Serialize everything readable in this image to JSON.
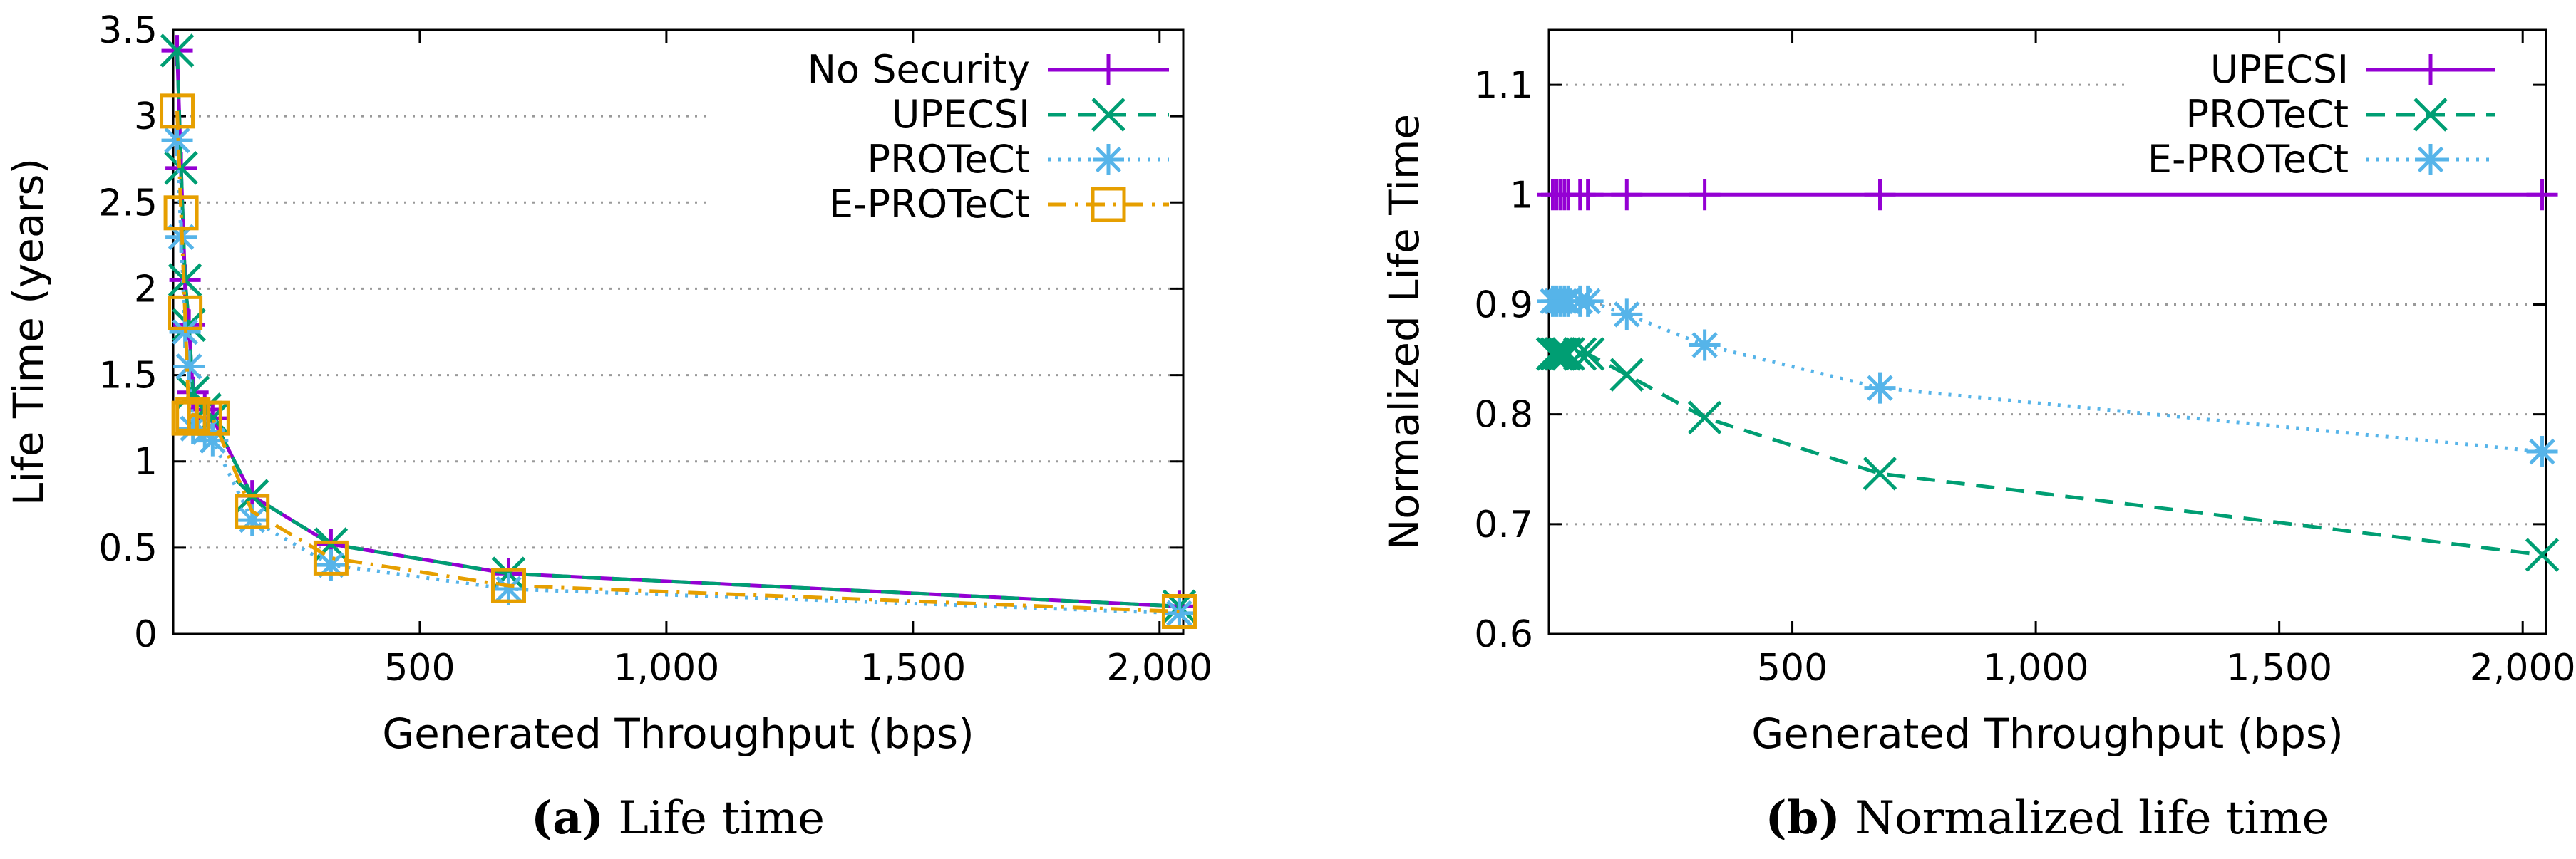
{
  "chart_data": [
    {
      "type": "line",
      "panel": "a",
      "caption_label": "(a)",
      "caption_text": "Life time",
      "xlabel": "Generated Throughput (bps)",
      "ylabel": "Life Time (years)",
      "xlim": [
        0,
        2048
      ],
      "ylim": [
        0,
        3.5
      ],
      "xticks": [
        500,
        1000,
        1500,
        2000
      ],
      "xtick_labels": [
        "500",
        "1,000",
        "1,500",
        "2,000"
      ],
      "yticks": [
        0,
        0.5,
        1,
        1.5,
        2,
        2.5,
        3,
        3.5
      ],
      "ytick_labels": [
        "0",
        "0.5",
        "1",
        "1.5",
        "2",
        "2.5",
        "3",
        "3.5"
      ],
      "grid": true,
      "legend_position": "top-right",
      "x": [
        8,
        16,
        24,
        32,
        40,
        64,
        80,
        160,
        320,
        680,
        2040
      ],
      "series": [
        {
          "name": "No Security",
          "color": "#9400d3",
          "marker": "plus",
          "dash": "solid",
          "values": [
            3.38,
            2.7,
            2.05,
            1.79,
            1.4,
            1.3,
            1.25,
            0.8,
            0.52,
            0.35,
            0.16
          ]
        },
        {
          "name": "UPECSI",
          "color": "#009e73",
          "marker": "x",
          "dash": "dashed",
          "values": [
            3.38,
            2.7,
            2.05,
            1.79,
            1.4,
            1.3,
            1.25,
            0.8,
            0.52,
            0.35,
            0.16
          ]
        },
        {
          "name": "PROTeCt",
          "color": "#56b4e9",
          "marker": "star",
          "dash": "dotted",
          "values": [
            2.86,
            2.3,
            1.75,
            1.55,
            1.19,
            1.17,
            1.12,
            0.66,
            0.4,
            0.26,
            0.12
          ]
        },
        {
          "name": "E-PROTeCt",
          "color": "#e69f00",
          "marker": "square",
          "dash": "dashdot",
          "values": [
            3.03,
            2.44,
            1.86,
            1.25,
            1.27,
            1.25,
            1.25,
            0.71,
            0.44,
            0.28,
            0.13
          ]
        }
      ]
    },
    {
      "type": "line",
      "panel": "b",
      "caption_label": "(b)",
      "caption_text": "Normalized life time",
      "xlabel": "Generated Throughput (bps)",
      "ylabel": "Normalized Life Time",
      "xlim": [
        0,
        2048
      ],
      "ylim": [
        0.6,
        1.15
      ],
      "xticks": [
        500,
        1000,
        1500,
        2000
      ],
      "xtick_labels": [
        "500",
        "1,000",
        "1,500",
        "2,000"
      ],
      "yticks": [
        0.6,
        0.7,
        0.8,
        0.9,
        1,
        1.1
      ],
      "ytick_labels": [
        "0.6",
        "0.7",
        "0.8",
        "0.9",
        "1",
        "1.1"
      ],
      "grid": true,
      "legend_position": "top-right",
      "x": [
        8,
        16,
        24,
        32,
        40,
        64,
        80,
        160,
        320,
        680,
        2040
      ],
      "series": [
        {
          "name": "UPECSI",
          "color": "#9400d3",
          "marker": "plus",
          "dash": "solid",
          "values": [
            1,
            1,
            1,
            1,
            1,
            1,
            1,
            1,
            1,
            1,
            1
          ]
        },
        {
          "name": "PROTeCt",
          "color": "#009e73",
          "marker": "x",
          "dash": "dashed",
          "values": [
            0.855,
            0.855,
            0.855,
            0.855,
            0.855,
            0.855,
            0.855,
            0.836,
            0.797,
            0.746,
            0.672
          ]
        },
        {
          "name": "E-PROTeCt",
          "color": "#56b4e9",
          "marker": "star",
          "dash": "dotted",
          "values": [
            0.903,
            0.903,
            0.903,
            0.903,
            0.903,
            0.903,
            0.903,
            0.891,
            0.863,
            0.824,
            0.766
          ]
        }
      ]
    }
  ]
}
